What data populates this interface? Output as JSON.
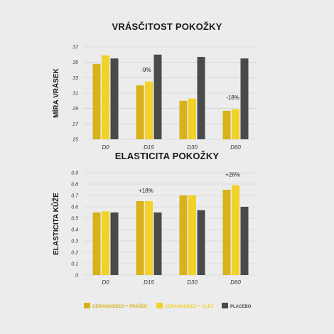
{
  "colors": {
    "ceramosides_prasek": "#d8b21a",
    "ceramosides_olej": "#f2d22a",
    "placebo": "#4a4a4a",
    "grid": "#c9c9c9",
    "background": "#ececec"
  },
  "chart_data": [
    {
      "type": "bar",
      "title": "VRÁSČITOST POKOŽKY",
      "xlabel": "",
      "ylabel": "MÍRA VRÁSEK",
      "ylim": [
        25,
        37
      ],
      "yticks": [
        "25",
        "27",
        "29",
        "31",
        "33",
        "35",
        "37"
      ],
      "categories": [
        "D0",
        "D15",
        "D30",
        "D60"
      ],
      "series": [
        {
          "name": "CERAMOSIDES™ PRÁŠEK",
          "values": [
            34.8,
            32.0,
            30.0,
            28.7
          ]
        },
        {
          "name": "CERAMOSIDES™ OLEJ",
          "values": [
            35.9,
            32.5,
            30.3,
            28.9
          ]
        },
        {
          "name": "PLACEBO",
          "values": [
            35.5,
            36.0,
            35.7,
            35.5
          ]
        }
      ],
      "annotations": [
        {
          "category": "D15",
          "text": "-9%"
        },
        {
          "category": "D60",
          "text": "-18%"
        }
      ],
      "grid": true
    },
    {
      "type": "bar",
      "title": "ELASTICITA POKOŽKY",
      "xlabel": "",
      "ylabel": "ELASTICITA KŮŽE",
      "ylim": [
        0,
        0.9
      ],
      "yticks": [
        "0",
        "0.1",
        "0.2",
        "0.3",
        "0.4",
        "0.5",
        "0.6",
        "0.7",
        "0.8",
        "0.9"
      ],
      "categories": [
        "D0",
        "D15",
        "D30",
        "D60"
      ],
      "series": [
        {
          "name": "CERAMOSIDES™ PRÁŠEK",
          "values": [
            0.55,
            0.65,
            0.7,
            0.75
          ]
        },
        {
          "name": "CERAMOSIDES™ OLEJ",
          "values": [
            0.56,
            0.65,
            0.7,
            0.79
          ]
        },
        {
          "name": "PLACEBO",
          "values": [
            0.55,
            0.55,
            0.57,
            0.6
          ]
        }
      ],
      "annotations": [
        {
          "category": "D15",
          "text": "+18%"
        },
        {
          "category": "D60",
          "text": "+26%"
        }
      ],
      "grid": true
    }
  ],
  "legend": {
    "placement": "bottom",
    "items": [
      {
        "label": "CERAMOSIDES™ PRÁŠEK",
        "color_key": "ceramosides_prasek"
      },
      {
        "label": "CERAMOSIDES™ OLEJ",
        "color_key": "ceramosides_olej"
      },
      {
        "label": "PLACEBO",
        "color_key": "placebo"
      }
    ]
  }
}
